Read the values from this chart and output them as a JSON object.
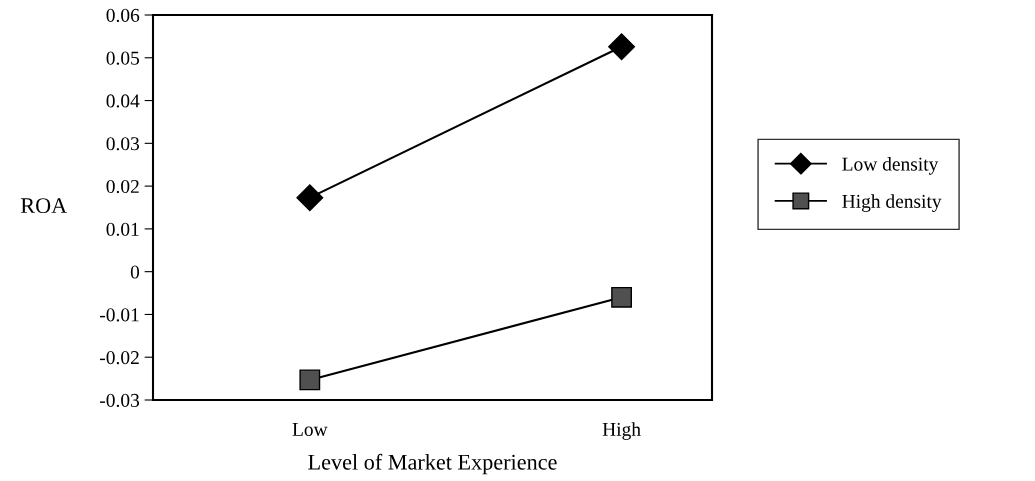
{
  "chart_data": {
    "type": "line",
    "xlabel": "Level of Market Experience",
    "ylabel": "ROA",
    "categories": [
      "Low",
      "High"
    ],
    "series": [
      {
        "name": "Low density",
        "color": "#000000",
        "marker": "diamond",
        "values": [
          0.0173,
          0.0526
        ]
      },
      {
        "name": "High density",
        "color": "#505050",
        "marker": "square",
        "values": [
          -0.0253,
          -0.006
        ]
      }
    ],
    "ylim": [
      -0.03,
      0.06
    ],
    "yticks": [
      {
        "value": -0.03,
        "label": "-0.03"
      },
      {
        "value": -0.02,
        "label": "-0.02"
      },
      {
        "value": -0.01,
        "label": "-0.01"
      },
      0,
      0.01,
      0.02,
      0.03,
      0.04,
      0.05,
      0.06
    ],
    "grid": false,
    "legend": "right",
    "line_style": "solid"
  }
}
